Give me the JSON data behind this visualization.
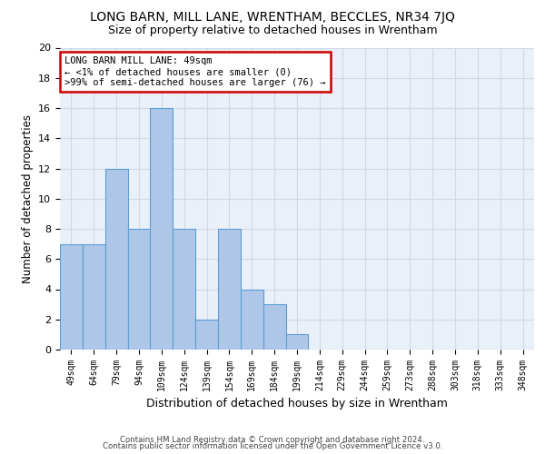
{
  "title": "LONG BARN, MILL LANE, WRENTHAM, BECCLES, NR34 7JQ",
  "subtitle": "Size of property relative to detached houses in Wrentham",
  "xlabel": "Distribution of detached houses by size in Wrentham",
  "ylabel": "Number of detached properties",
  "categories": [
    "49sqm",
    "64sqm",
    "79sqm",
    "94sqm",
    "109sqm",
    "124sqm",
    "139sqm",
    "154sqm",
    "169sqm",
    "184sqm",
    "199sqm",
    "214sqm",
    "229sqm",
    "244sqm",
    "259sqm",
    "273sqm",
    "288sqm",
    "303sqm",
    "318sqm",
    "333sqm",
    "348sqm"
  ],
  "values": [
    7,
    7,
    12,
    8,
    16,
    8,
    2,
    8,
    4,
    3,
    1,
    0,
    0,
    0,
    0,
    0,
    0,
    0,
    0,
    0,
    0
  ],
  "bar_color": "#aec6e8",
  "bar_edge_color": "#5a9fd4",
  "annotation_text": "LONG BARN MILL LANE: 49sqm\n← <1% of detached houses are smaller (0)\n>99% of semi-detached houses are larger (76) →",
  "ylim": [
    0,
    20
  ],
  "yticks": [
    0,
    2,
    4,
    6,
    8,
    10,
    12,
    14,
    16,
    18,
    20
  ],
  "grid_color": "#d0d8e8",
  "bg_color": "#eaf0f8",
  "footer_line1": "Contains HM Land Registry data © Crown copyright and database right 2024.",
  "footer_line2": "Contains public sector information licensed under the Open Government Licence v3.0."
}
